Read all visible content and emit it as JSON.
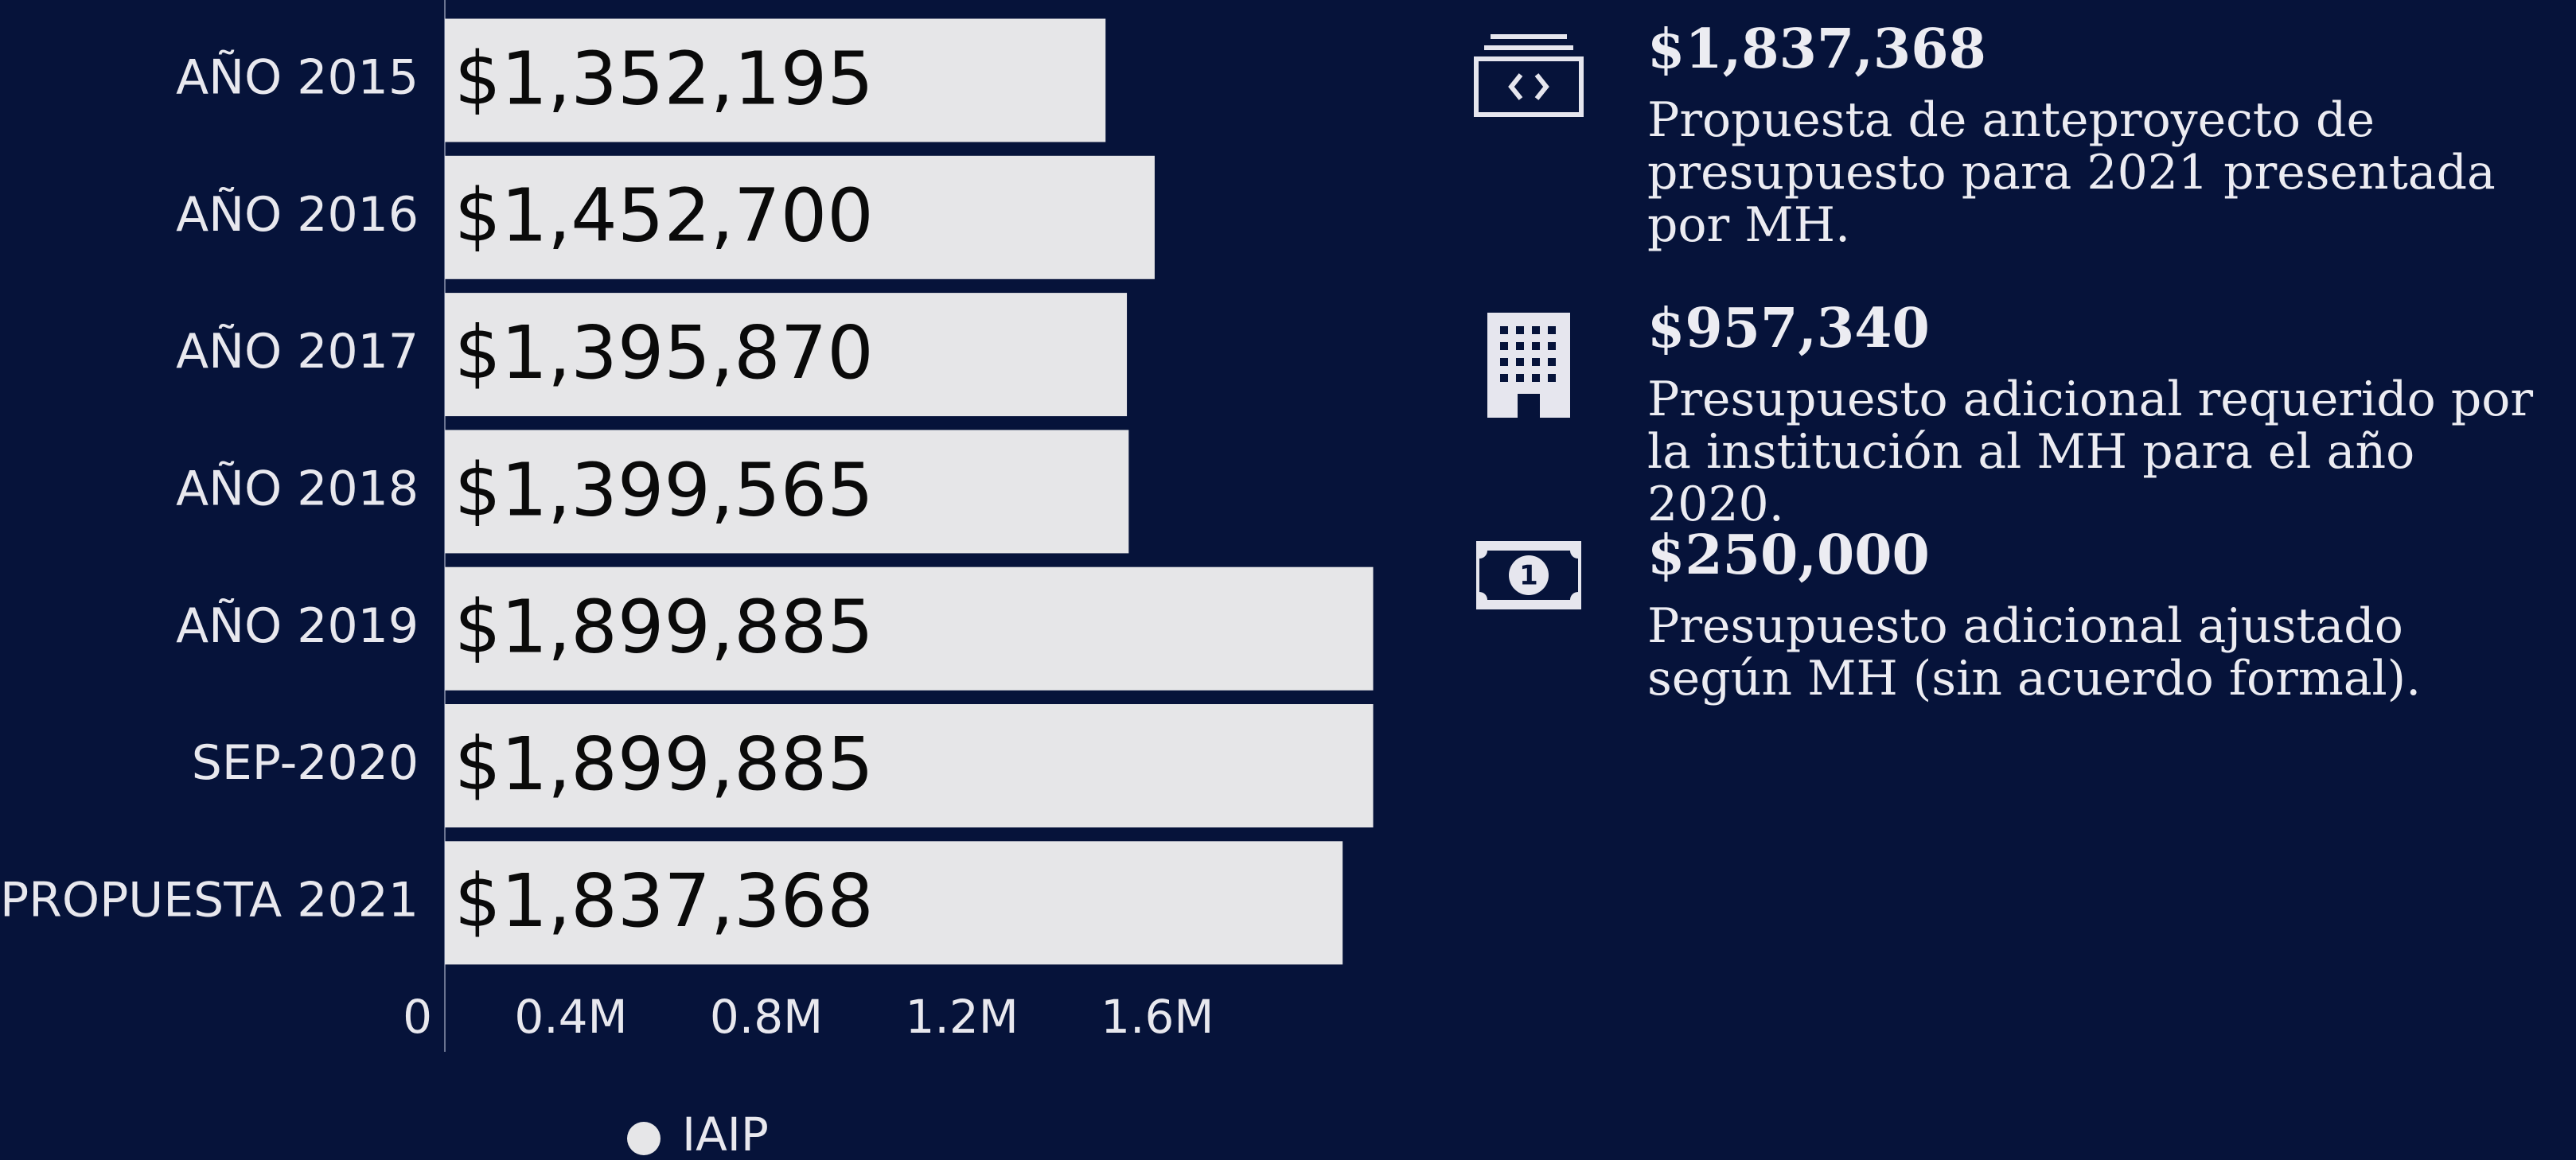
{
  "chart_data": {
    "type": "bar",
    "orientation": "horizontal",
    "categories": [
      "AÑO 2015",
      "AÑO 2016",
      "AÑO 2017",
      "AÑO 2018",
      "AÑO 2019",
      "SEP-2020",
      "PROPUESTA 2021"
    ],
    "series": [
      {
        "name": "IAIP",
        "color": "#e6e6e8",
        "values": [
          1352195,
          1452700,
          1395870,
          1399565,
          1899885,
          1899885,
          1837368
        ],
        "value_labels": [
          "$1,352,195",
          "$1,452,700",
          "$1,395,870",
          "$1,399,565",
          "$1,899,885",
          "$1,899,885",
          "$1,837,368"
        ]
      }
    ],
    "xlim": [
      0,
      2000000
    ],
    "xticks": [
      0,
      {
        "value": 400000,
        "label": "0.4M"
      },
      {
        "value": 800000,
        "label": "0.8M"
      },
      {
        "value": 1200000,
        "label": "1.2M"
      },
      {
        "value": 1600000,
        "label": "1.6M"
      }
    ],
    "grid": false,
    "legend": "bottom"
  },
  "panel": {
    "items": [
      {
        "amount": "$1,837,368",
        "description": "Propuesta de anteproyecto de presupuesto para 2021 presentada por MH."
      },
      {
        "amount": "$957,340",
        "description": "Presupuesto adicional requerido por la institución al MH para el año 2020."
      },
      {
        "amount": "$250,000",
        "description": "Presupuesto adicional ajustado según MH (sin acuerdo formal)."
      }
    ]
  }
}
